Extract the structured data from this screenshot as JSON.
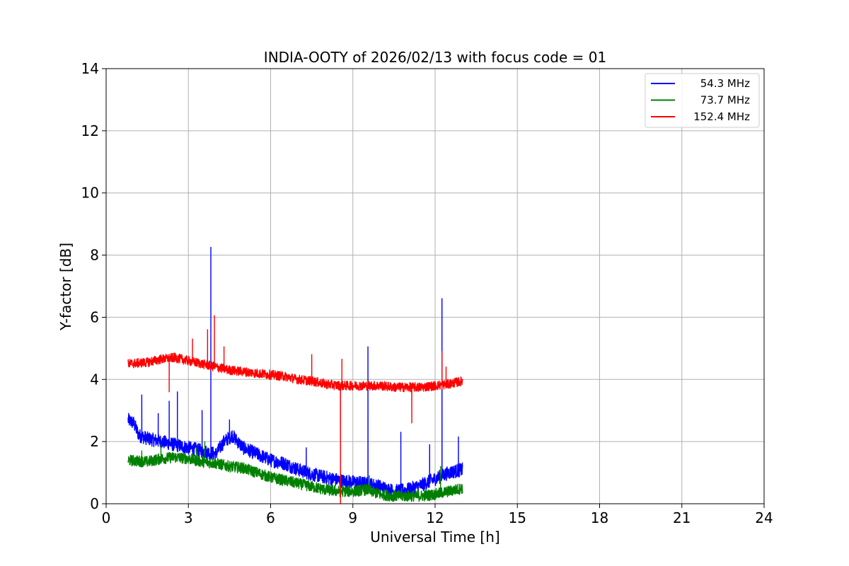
{
  "chart_data": {
    "type": "line",
    "title": "INDIA-OOTY of 2026/02/13 with focus code = 01",
    "xlabel": "Universal Time [h]",
    "ylabel": "Y-factor [dB]",
    "xlim": [
      0,
      24
    ],
    "ylim": [
      0,
      14
    ],
    "xticks": [
      0,
      3,
      6,
      9,
      12,
      15,
      18,
      21,
      24
    ],
    "yticks": [
      0,
      2,
      4,
      6,
      8,
      10,
      12,
      14
    ],
    "grid": true,
    "legend_position": "top-right",
    "series": [
      {
        "name": "54.3 MHz",
        "color": "#0000ff",
        "noise": 0.22,
        "x": [
          0.8,
          1.0,
          1.2,
          1.5,
          2.0,
          2.5,
          3.0,
          3.5,
          4.0,
          4.3,
          4.6,
          5.0,
          5.5,
          6.0,
          6.5,
          7.0,
          7.5,
          8.0,
          8.5,
          9.0,
          9.5,
          10.0,
          10.5,
          11.0,
          11.5,
          12.0,
          12.5,
          13.0
        ],
        "y": [
          2.7,
          2.6,
          2.2,
          2.1,
          2.0,
          1.9,
          1.8,
          1.7,
          1.6,
          2.0,
          2.2,
          1.8,
          1.6,
          1.4,
          1.3,
          1.1,
          0.95,
          0.85,
          0.75,
          0.7,
          0.65,
          0.55,
          0.4,
          0.45,
          0.6,
          0.8,
          1.0,
          1.1
        ],
        "spikes": [
          {
            "x": 1.3,
            "y": 3.5
          },
          {
            "x": 1.9,
            "y": 2.9
          },
          {
            "x": 2.3,
            "y": 3.3
          },
          {
            "x": 2.6,
            "y": 3.6
          },
          {
            "x": 3.5,
            "y": 3.0
          },
          {
            "x": 3.82,
            "y": 8.25
          },
          {
            "x": 4.5,
            "y": 2.7
          },
          {
            "x": 7.3,
            "y": 1.8
          },
          {
            "x": 9.55,
            "y": 5.05
          },
          {
            "x": 10.75,
            "y": 2.3
          },
          {
            "x": 11.8,
            "y": 1.9
          },
          {
            "x": 12.25,
            "y": 6.6
          },
          {
            "x": 12.85,
            "y": 2.15
          }
        ]
      },
      {
        "name": "73.7 MHz",
        "color": "#008000",
        "noise": 0.18,
        "x": [
          0.8,
          1.5,
          2.0,
          2.5,
          3.0,
          3.5,
          4.0,
          4.5,
          5.0,
          5.5,
          6.0,
          6.5,
          7.0,
          7.5,
          8.0,
          8.5,
          9.0,
          9.5,
          10.0,
          10.5,
          11.0,
          11.5,
          12.0,
          12.5,
          13.0
        ],
        "y": [
          1.4,
          1.35,
          1.45,
          1.5,
          1.45,
          1.35,
          1.3,
          1.2,
          1.15,
          1.0,
          0.85,
          0.75,
          0.65,
          0.55,
          0.45,
          0.4,
          0.4,
          0.45,
          0.3,
          0.25,
          0.25,
          0.25,
          0.3,
          0.4,
          0.5
        ],
        "spikes": [
          {
            "x": 1.3,
            "y": 1.7
          },
          {
            "x": 2.0,
            "y": 1.9
          },
          {
            "x": 3.3,
            "y": 1.8
          },
          {
            "x": 3.6,
            "y": 2.0
          },
          {
            "x": 9.6,
            "y": 0.9
          },
          {
            "x": 12.2,
            "y": 1.2
          }
        ]
      },
      {
        "name": "152.4 MHz",
        "color": "#ff0000",
        "noise": 0.15,
        "x": [
          0.8,
          1.5,
          2.0,
          2.5,
          3.0,
          3.5,
          4.0,
          4.5,
          5.0,
          5.5,
          6.0,
          6.5,
          7.0,
          7.5,
          8.0,
          8.5,
          9.0,
          9.5,
          10.0,
          10.5,
          11.0,
          11.5,
          12.0,
          12.5,
          13.0
        ],
        "y": [
          4.5,
          4.55,
          4.65,
          4.7,
          4.6,
          4.5,
          4.4,
          4.3,
          4.25,
          4.2,
          4.15,
          4.1,
          4.0,
          3.95,
          3.85,
          3.8,
          3.8,
          3.8,
          3.8,
          3.75,
          3.75,
          3.75,
          3.8,
          3.85,
          3.95
        ],
        "spikes": [
          {
            "x": 2.3,
            "y": 3.6
          },
          {
            "x": 3.15,
            "y": 5.3
          },
          {
            "x": 3.7,
            "y": 5.6
          },
          {
            "x": 3.95,
            "y": 6.05
          },
          {
            "x": 4.3,
            "y": 5.05
          },
          {
            "x": 7.5,
            "y": 4.8
          },
          {
            "x": 8.55,
            "y": 0.0
          },
          {
            "x": 8.6,
            "y": 4.65
          },
          {
            "x": 11.15,
            "y": 2.6
          },
          {
            "x": 12.25,
            "y": 4.9
          },
          {
            "x": 12.4,
            "y": 4.4
          }
        ]
      }
    ]
  }
}
